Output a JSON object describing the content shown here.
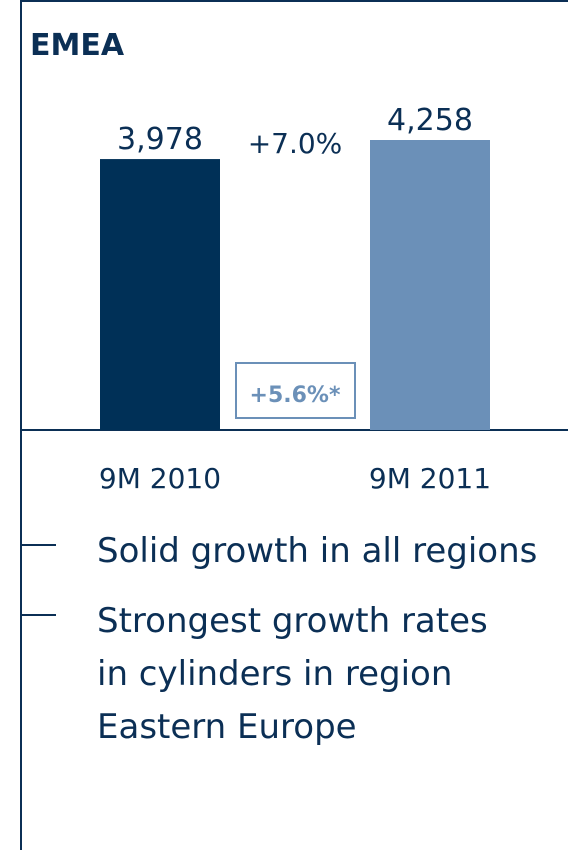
{
  "chart_data": {
    "type": "bar",
    "title": "EMEA",
    "categories": [
      "9M 2010",
      "9M 2011"
    ],
    "values": [
      3978,
      4258
    ],
    "value_labels": [
      "3,978",
      "4,258"
    ],
    "colors": [
      "#003057",
      "#6b90b8"
    ],
    "annotations": [
      "+7.0%",
      "+5.6%*"
    ],
    "bullets": [
      "Solid growth in all regions",
      [
        "Strongest growth rates",
        "in cylinders in region",
        "Eastern Europe"
      ]
    ]
  }
}
